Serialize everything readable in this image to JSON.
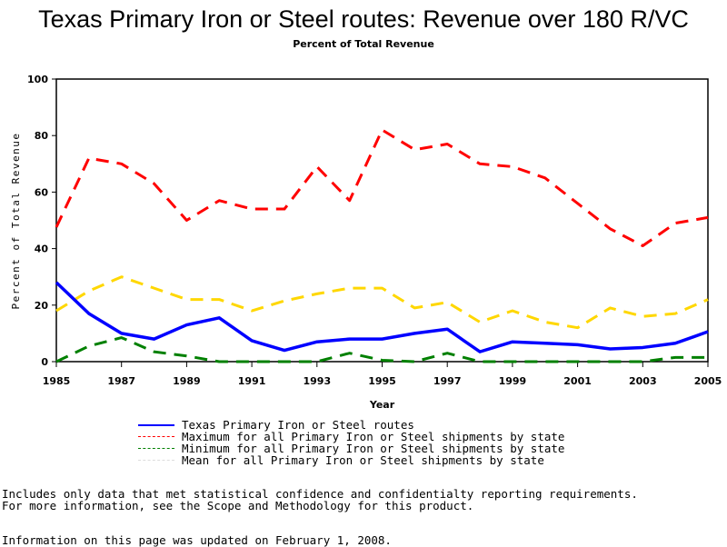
{
  "chart_data": {
    "type": "line",
    "title": "Texas Primary Iron or Steel routes: Revenue over 180 R/VC",
    "subtitle": "Percent of Total Revenue",
    "xlabel": "Year",
    "ylabel": "Percent of Total Revenue",
    "xlim": [
      1985,
      2005
    ],
    "ylim": [
      0,
      100
    ],
    "xticks": [
      "1985",
      "1987",
      "1989",
      "1991",
      "1993",
      "1995",
      "1997",
      "1999",
      "2001",
      "2003",
      "2005"
    ],
    "yticks": [
      "0",
      "20",
      "40",
      "60",
      "80",
      "100"
    ],
    "x": [
      1985,
      1986,
      1987,
      1988,
      1989,
      1990,
      1991,
      1992,
      1993,
      1994,
      1995,
      1996,
      1997,
      1998,
      1999,
      2000,
      2001,
      2002,
      2003,
      2004,
      2005
    ],
    "series": [
      {
        "name": "Texas Primary Iron or Steel routes",
        "color": "#0000ff",
        "dash": "solid",
        "values": [
          28,
          17,
          10,
          8,
          13,
          15.5,
          7.4,
          4,
          7,
          8,
          8,
          10,
          11.5,
          3.5,
          7,
          6.5,
          6,
          4.5,
          5,
          6.5,
          10.6
        ]
      },
      {
        "name": "Maximum for all Primary Iron or Steel shipments by state",
        "color": "#ff0000",
        "dash": "dashed",
        "values": [
          47.6,
          72,
          70,
          63,
          50,
          57,
          54,
          54,
          69,
          57,
          82,
          75,
          77,
          70,
          69,
          65,
          56,
          47,
          41,
          49,
          51
        ]
      },
      {
        "name": "Minimum for all Primary Iron or Steel shipments by state",
        "color": "#008000",
        "dash": "dashed",
        "values": [
          0,
          5.5,
          8.5,
          3.5,
          2,
          0,
          0,
          0,
          0,
          3,
          0.5,
          0,
          3,
          0,
          0,
          0,
          0,
          0,
          0,
          1.5,
          1.5
        ]
      },
      {
        "name": "Mean for all Primary Iron or Steel shipments by state",
        "color": "#ffd700",
        "dash": "dashed",
        "values": [
          18,
          25,
          30,
          26,
          22,
          22,
          18,
          21.5,
          24,
          26,
          26,
          19,
          21,
          14,
          18,
          14,
          12,
          19,
          16,
          17,
          22
        ]
      }
    ],
    "legend_position": "bottom"
  },
  "notes": [
    "Includes only data that met statistical confidence and confidentialty reporting requirements.",
    "For more information, see the Scope and Methodology for this product."
  ],
  "updated": "Information on this page was updated on February 1, 2008."
}
